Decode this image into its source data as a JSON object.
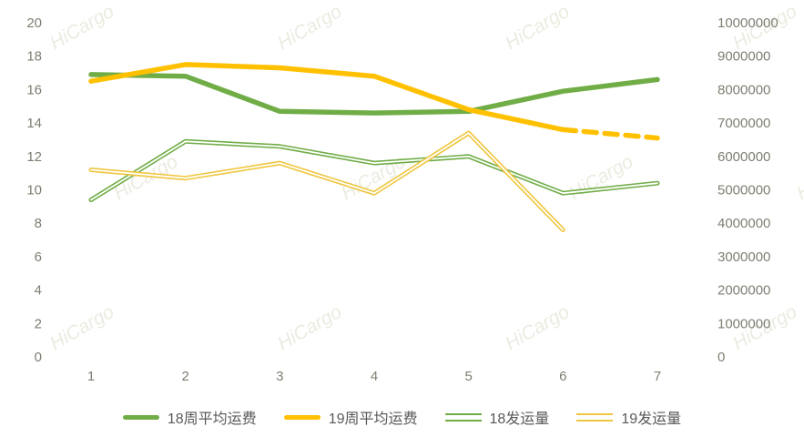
{
  "watermark": {
    "text": "HiCargo",
    "color": "#DBDBC9",
    "opacity": 0.55
  },
  "chart_data": {
    "type": "line",
    "title": "",
    "grid": false,
    "legend_position": "bottom",
    "x_categories": [
      "1",
      "2",
      "3",
      "4",
      "5",
      "6",
      "7"
    ],
    "left_axis": {
      "min": 0,
      "max": 20,
      "tick_labels": [
        "20",
        "18",
        "16",
        "14",
        "12",
        "10",
        "8",
        "6",
        "4",
        "2",
        "0"
      ]
    },
    "right_axis": {
      "min": 0,
      "max": 10000000,
      "tick_labels": [
        "10000000",
        "9000000",
        "8000000",
        "7000000",
        "6000000",
        "5000000",
        "4000000",
        "3000000",
        "2000000",
        "1000000",
        "0"
      ]
    },
    "series": [
      {
        "name": "18周平均运费",
        "axis": "left",
        "color": "#70AD47",
        "style": "thick",
        "values": [
          16.9,
          16.8,
          14.7,
          14.6,
          14.7,
          15.9,
          16.6
        ]
      },
      {
        "name": "19周平均运费",
        "axis": "left",
        "color": "#FFC000",
        "style": "thick",
        "dash_from_index": 5,
        "values": [
          16.5,
          17.5,
          17.3,
          16.8,
          14.8,
          13.6,
          13.1
        ]
      },
      {
        "name": "18发运量",
        "axis": "right",
        "color": "#70AD47",
        "style": "thin-double",
        "values": [
          4700000,
          6450000,
          6300000,
          5800000,
          6000000,
          4900000,
          5200000
        ]
      },
      {
        "name": "19发运量",
        "axis": "right",
        "color": "#EFC63F",
        "style": "thin-double",
        "values": [
          5600000,
          5350000,
          5800000,
          4900000,
          6700000,
          3800000
        ]
      }
    ]
  }
}
